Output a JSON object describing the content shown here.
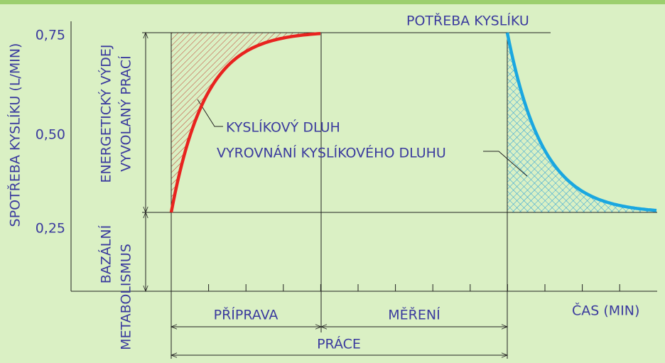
{
  "axis": {
    "y_label": "SPOTŘEBA KYSLÍKU (L/MIN)",
    "y_ticks": [
      "0,75",
      "0,50",
      "0,25"
    ],
    "x_label": "ČAS (MIN)"
  },
  "labels": {
    "demand": "POTŘEBA KYSLÍKU",
    "debt": "KYSLÍKOVÝ DLUH",
    "repayment": "VYROVNÁNÍ KYSLÍKOVÉHO DLUHU"
  },
  "side": {
    "work_1": "ENERGETICKÝ VÝDEJ",
    "work_2": "VYVOLANÝ PRACÍ",
    "basal_1": "BAZÁLNÍ",
    "basal_2": "METABOLISMUS"
  },
  "dimensions": {
    "prep": "PŘÍPRAVA",
    "measure": "MĚŘENÍ",
    "work": "PRÁCE"
  }
}
